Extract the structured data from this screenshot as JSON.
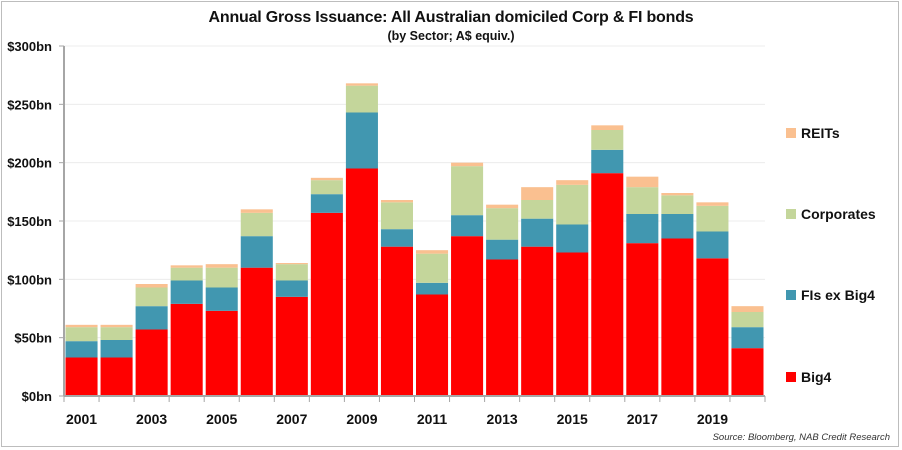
{
  "chart_data": {
    "type": "bar",
    "stacked": true,
    "title": "Annual Gross Issuance: All Australian domiciled Corp & FI bonds",
    "subtitle": "(by Sector; A$ equiv.)",
    "xlabel": "",
    "ylabel": "",
    "ylim": [
      0,
      300
    ],
    "yticks": [
      0,
      50,
      100,
      150,
      200,
      250,
      300
    ],
    "ytick_labels": [
      "$0bn",
      "$50bn",
      "$100bn",
      "$150bn",
      "$200bn",
      "$250bn",
      "$300bn"
    ],
    "grid": true,
    "categories": [
      "2001",
      "2002",
      "2003",
      "2004",
      "2005",
      "2006",
      "2007",
      "2008",
      "2009",
      "2010",
      "2011",
      "2012",
      "2013",
      "2014",
      "2015",
      "2016",
      "2017",
      "2018",
      "2019",
      "2020"
    ],
    "xtick_labels": [
      "2001",
      "",
      "2003",
      "",
      "2005",
      "",
      "2007",
      "",
      "2009",
      "",
      "2011",
      "",
      "2013",
      "",
      "2015",
      "",
      "2017",
      "",
      "2019",
      ""
    ],
    "series": [
      {
        "name": "Big4",
        "color": "#ff0000",
        "values": [
          33,
          33,
          57,
          79,
          73,
          110,
          85,
          157,
          195,
          128,
          87,
          137,
          117,
          128,
          123,
          191,
          131,
          135,
          118,
          41
        ]
      },
      {
        "name": "FIs ex Big4",
        "color": "#4197b0",
        "values": [
          14,
          15,
          20,
          20,
          20,
          27,
          14,
          16,
          48,
          15,
          10,
          18,
          17,
          24,
          24,
          20,
          25,
          21,
          23,
          18
        ]
      },
      {
        "name": "Corporates",
        "color": "#c4d69b",
        "values": [
          12,
          11,
          16,
          11,
          17,
          20,
          14,
          12,
          23,
          23,
          25,
          42,
          27,
          16,
          34,
          17,
          23,
          16,
          22,
          13
        ]
      },
      {
        "name": "REITs",
        "color": "#fac090",
        "values": [
          2,
          2,
          3,
          2,
          3,
          3,
          1,
          2,
          2,
          2,
          3,
          3,
          3,
          11,
          4,
          4,
          9,
          2,
          3,
          5
        ]
      }
    ],
    "legend": {
      "placement": "right",
      "order": [
        "REITs",
        "Corporates",
        "FIs ex Big4",
        "Big4"
      ]
    },
    "source": "Source: Bloomberg, NAB Credit Research"
  }
}
